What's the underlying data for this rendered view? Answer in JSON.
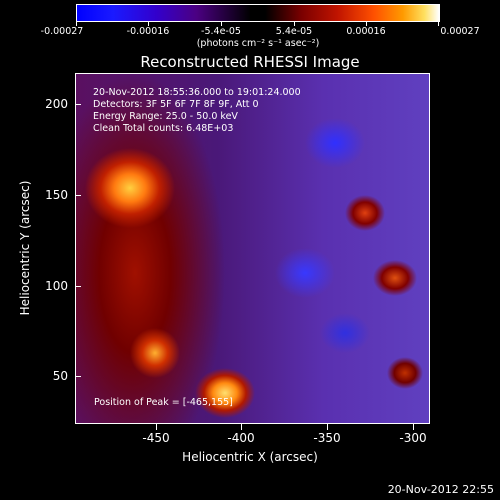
{
  "colorbar": {
    "tick_labels": [
      "-0.00027",
      "-0.00016",
      "-5.4e-05",
      "5.4e-05",
      "0.00016",
      "0.00027"
    ],
    "units": "(photons cm⁻² s⁻¹ asec⁻²)"
  },
  "image": {
    "title": "Reconstructed RHESSI Image",
    "info_lines": [
      "20-Nov-2012 18:55:36.000 to 19:01:24.000",
      "Detectors: 3F 5F 6F 7F 8F 9F, Att 0",
      "Energy Range: 25.0 - 50.0 keV",
      "Clean    Total counts: 6.48E+03"
    ],
    "peak_label": "Position of Peak = [-465,155]",
    "x_axis": {
      "label": "Heliocentric X (arcsec)",
      "ticks": [
        "-450",
        "-400",
        "-350",
        "-300"
      ]
    },
    "y_axis": {
      "label": "Heliocentric Y (arcsec)",
      "ticks": [
        "200",
        "150",
        "100",
        "50"
      ]
    }
  },
  "timestamp": "20-Nov-2012 22:55"
}
